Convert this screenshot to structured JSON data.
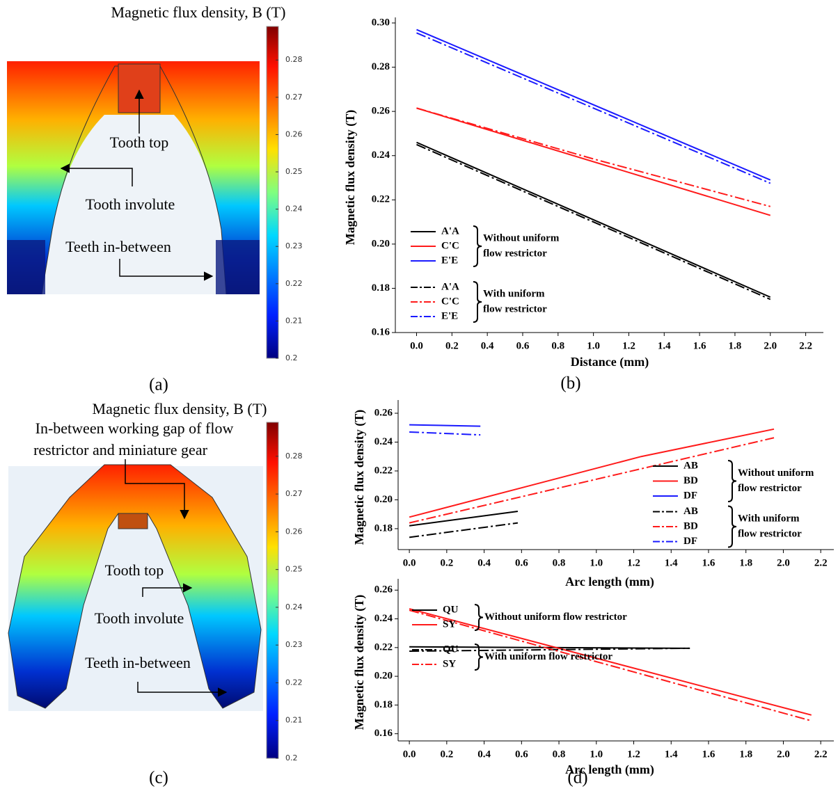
{
  "chart_data": [
    {
      "type": "colorbar",
      "title": "Magnetic flux density, B (T)",
      "ylim": [
        0.2,
        0.289
      ],
      "yticks": [
        0.2,
        0.21,
        0.22,
        0.23,
        0.24,
        0.25,
        0.26,
        0.27,
        0.28
      ],
      "annotations": [
        "Tooth top",
        "Tooth involute",
        "Teeth in-between"
      ],
      "panel_label": "(a)"
    },
    {
      "type": "line",
      "xlabel": "Distance (mm)",
      "ylabel": "Magnetic flux density (T)",
      "xlim": [
        -0.12,
        2.3
      ],
      "ylim": [
        0.16,
        0.3
      ],
      "xticks": [
        {
          "value": 0,
          "label": "0.0"
        },
        0.2,
        0.4,
        0.6,
        0.8,
        {
          "value": 1,
          "label": "1.0"
        },
        1.2,
        1.4,
        1.6,
        1.8,
        {
          "value": 2,
          "label": "2.0"
        },
        2.2
      ],
      "yticks": [
        0.16,
        0.18,
        {
          "value": 0.2,
          "label": "0.20"
        },
        0.22,
        0.24,
        0.26,
        0.28,
        {
          "value": 0.3,
          "label": "0.30"
        }
      ],
      "legend_groups": [
        [
          "Without uniform",
          "flow restrictor"
        ],
        [
          "With uniform",
          "flow restrictor"
        ]
      ],
      "series": [
        {
          "name": "A'A",
          "color": "#000000",
          "dash": false,
          "group": 0,
          "x": [
            0,
            2
          ],
          "values": [
            0.246,
            0.176
          ]
        },
        {
          "name": "C'C",
          "color": "#ff1a1a",
          "dash": false,
          "group": 0,
          "x": [
            0,
            2
          ],
          "values": [
            0.2615,
            0.213
          ]
        },
        {
          "name": "E'E",
          "color": "#1a1aff",
          "dash": false,
          "group": 0,
          "x": [
            0,
            2
          ],
          "values": [
            0.297,
            0.229
          ]
        },
        {
          "name": "A'A",
          "color": "#000000",
          "dash": true,
          "group": 1,
          "x": [
            0,
            2
          ],
          "values": [
            0.245,
            0.175
          ]
        },
        {
          "name": "C'C",
          "color": "#ff1a1a",
          "dash": true,
          "group": 1,
          "x": [
            0,
            1,
            2
          ],
          "values": [
            0.2615,
            0.2385,
            0.217
          ]
        },
        {
          "name": "E'E",
          "color": "#1a1aff",
          "dash": true,
          "group": 1,
          "x": [
            0,
            2
          ],
          "values": [
            0.2955,
            0.2275
          ]
        }
      ],
      "panel_label": "(b)"
    },
    {
      "type": "colorbar",
      "title": "Magnetic flux density, B (T)",
      "ylim": [
        0.2,
        0.289
      ],
      "yticks": [
        0.2,
        0.21,
        0.22,
        0.23,
        0.24,
        0.25,
        0.26,
        0.27,
        0.28
      ],
      "annotations": [
        "In-between working gap of flow",
        "restrictor and miniature gear",
        "Tooth top",
        "Tooth involute",
        "Teeth in-between"
      ],
      "panel_label": "(c)"
    },
    {
      "type": "line",
      "xlabel": "Arc length (mm)",
      "ylabel": "Magnetic flux density (T)",
      "xlim": [
        -0.06,
        2.27
      ],
      "ylim": [
        0.1655,
        0.2653
      ],
      "xticks": [
        {
          "value": 0,
          "label": "0.0"
        },
        0.2,
        0.4,
        0.6,
        0.8,
        {
          "value": 1,
          "label": "1.0"
        },
        1.2,
        1.4,
        1.6,
        1.8,
        {
          "value": 2,
          "label": "2.0"
        },
        2.2
      ],
      "yticks": [
        0.18,
        {
          "value": 0.2,
          "label": "0.20"
        },
        0.22,
        0.24,
        0.26
      ],
      "legend_groups": [
        [
          "Without uniform",
          "flow restrictor"
        ],
        [
          "With uniform",
          "flow restrictor"
        ]
      ],
      "series": [
        {
          "name": "AB",
          "color": "#000000",
          "dash": false,
          "group": 0,
          "x": [
            0,
            0.58
          ],
          "values": [
            0.182,
            0.192
          ]
        },
        {
          "name": "BD",
          "color": "#ff1a1a",
          "dash": false,
          "group": 0,
          "x": [
            0,
            1.24,
            1.95
          ],
          "values": [
            0.188,
            0.23,
            0.249
          ]
        },
        {
          "name": "DF",
          "color": "#1a1aff",
          "dash": false,
          "group": 0,
          "x": [
            0,
            0.38
          ],
          "values": [
            0.252,
            0.251
          ]
        },
        {
          "name": "AB",
          "color": "#000000",
          "dash": true,
          "group": 1,
          "x": [
            0,
            0.58
          ],
          "values": [
            0.174,
            0.184
          ]
        },
        {
          "name": "BD",
          "color": "#ff1a1a",
          "dash": true,
          "group": 1,
          "x": [
            0,
            1.95
          ],
          "values": [
            0.184,
            0.243
          ]
        },
        {
          "name": "DF",
          "color": "#1a1aff",
          "dash": true,
          "group": 1,
          "x": [
            0,
            0.38
          ],
          "values": [
            0.247,
            0.245
          ]
        }
      ]
    },
    {
      "type": "line",
      "xlabel": "Arc length (mm)",
      "ylabel": "Magnetic flux density (T)",
      "xlim": [
        -0.06,
        2.27
      ],
      "ylim": [
        0.155,
        0.264
      ],
      "xticks": [
        {
          "value": 0,
          "label": "0.0"
        },
        0.2,
        0.4,
        0.6,
        0.8,
        {
          "value": 1,
          "label": "1.0"
        },
        1.2,
        1.4,
        1.6,
        1.8,
        {
          "value": 2,
          "label": "2.0"
        },
        2.2
      ],
      "yticks": [
        0.16,
        0.18,
        {
          "value": 0.2,
          "label": "0.20"
        },
        0.22,
        0.24,
        0.26
      ],
      "legend_groups": [
        [
          "Without uniform flow restrictor"
        ],
        [
          "With uniform flow restrictor"
        ]
      ],
      "series": [
        {
          "name": "QU",
          "color": "#000000",
          "dash": false,
          "group": 0,
          "x": [
            0,
            1.5
          ],
          "values": [
            0.2205,
            0.2195
          ]
        },
        {
          "name": "SY",
          "color": "#ff1a1a",
          "dash": false,
          "group": 0,
          "x": [
            0,
            2.15
          ],
          "values": [
            0.247,
            0.173
          ]
        },
        {
          "name": "QU",
          "color": "#000000",
          "dash": true,
          "group": 1,
          "x": [
            0,
            1.5
          ],
          "values": [
            0.2175,
            0.2195
          ]
        },
        {
          "name": "SY",
          "color": "#ff1a1a",
          "dash": true,
          "group": 1,
          "x": [
            0,
            2.15
          ],
          "values": [
            0.246,
            0.169
          ]
        }
      ],
      "panel_label": "(d)"
    }
  ]
}
